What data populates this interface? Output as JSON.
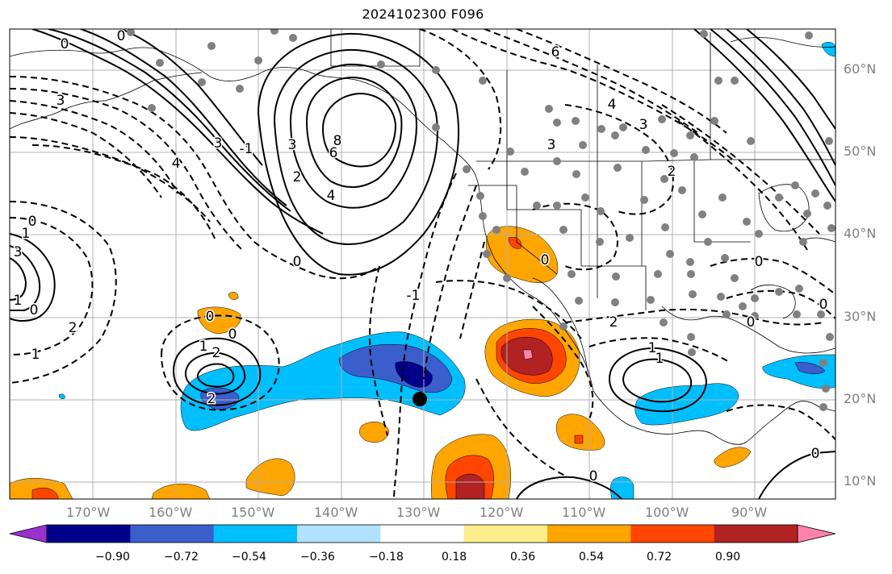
{
  "title": "2024102300 F096",
  "map": {
    "lat_labels": [
      "60°N",
      "50°N",
      "40°N",
      "30°N",
      "20°N",
      "10°N"
    ],
    "lon_labels": [
      "170°W",
      "160°W",
      "150°W",
      "140°W",
      "130°W",
      "120°W",
      "110°W",
      "100°W",
      "90°W"
    ]
  },
  "colorbar": {
    "ticks": [
      "−0.90",
      "−0.72",
      "−0.54",
      "−0.36",
      "−0.18",
      "0.18",
      "0.36",
      "0.54",
      "0.72",
      "0.90"
    ],
    "colors": [
      "#9932cc",
      "#00008b",
      "#3a5fcd",
      "#00bfff",
      "#b0e2ff",
      "#ffffff",
      "#ffec8b",
      "#ffa500",
      "#ff4500",
      "#b22222",
      "#ff82ab"
    ]
  },
  "contour_labels": [
    "0",
    "0",
    "3",
    "3",
    "4",
    "-1",
    "8",
    "6",
    "3",
    "2",
    "4",
    "0",
    "-1",
    "6",
    "4",
    "3",
    "3",
    "2",
    "0",
    "1",
    "0",
    "3",
    "1",
    "2",
    "1",
    "0",
    "1",
    "2",
    "2",
    "0",
    "0",
    "0",
    "1",
    "2",
    "0",
    "0",
    "0",
    "1",
    "0"
  ],
  "colors": {
    "solid_contour": "#000000",
    "dashed_contour": "#000000",
    "station_dot": "#808080",
    "grid": "#b0b0b0",
    "coast": "#000000"
  }
}
